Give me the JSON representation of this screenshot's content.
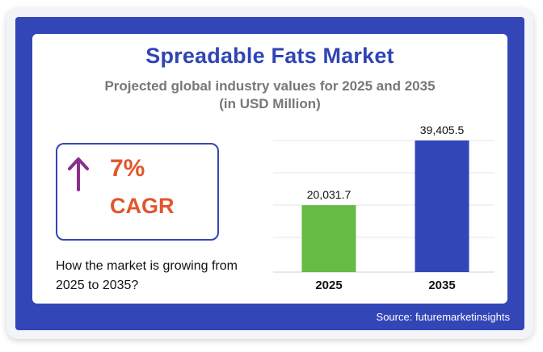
{
  "title": "Spreadable Fats Market",
  "subtitle_line1": "Projected global industry values for 2025 and 2035",
  "subtitle_line2": "(in USD Million)",
  "cagr": {
    "value": "7%",
    "label": "CAGR"
  },
  "question": "How the market is growing from 2025 to 2035?",
  "source": "Source: futuremarketinsights",
  "colors": {
    "frame": "#3346b8",
    "title": "#2f45b5",
    "accent_orange": "#e2552d",
    "arrow": "#8b2f8a",
    "bar_2025": "#66bb44",
    "bar_2035": "#3346b8"
  },
  "chart_data": {
    "type": "bar",
    "title": "Spreadable Fats Market",
    "xlabel": "",
    "ylabel": "",
    "categories": [
      "2025",
      "2035"
    ],
    "values": [
      20031.7,
      39405.5
    ],
    "value_labels": [
      "20,031.7",
      "39,405.5"
    ],
    "colors": [
      "#66bb44",
      "#3346b8"
    ],
    "ylim": [
      0,
      39405.5
    ],
    "grid": true
  }
}
